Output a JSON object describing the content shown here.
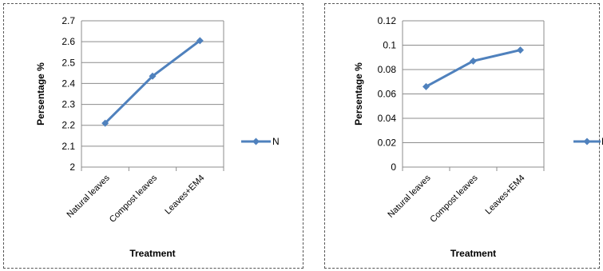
{
  "chart_data": [
    {
      "type": "line",
      "title": "",
      "xlabel": "Treatment",
      "ylabel": "Persentage %",
      "categories": [
        "Natural leaves",
        "Compost leaves",
        "Leaves+EM4"
      ],
      "series": [
        {
          "name": "N",
          "values": [
            2.21,
            2.435,
            2.605
          ]
        }
      ],
      "ylim": [
        2,
        2.7
      ],
      "yticks": [
        "2",
        "2.1",
        "2.2",
        "2.3",
        "2.4",
        "2.5",
        "2.6",
        "2.7"
      ],
      "grid": true,
      "legend": "right",
      "color": "#4f81bd"
    },
    {
      "type": "line",
      "title": "",
      "xlabel": "Treatment",
      "ylabel": "Persentage %",
      "categories": [
        "Natural leaves",
        "Compost leaves",
        "Leaves+EM4"
      ],
      "series": [
        {
          "name": "Mg",
          "values": [
            0.066,
            0.087,
            0.096
          ]
        }
      ],
      "ylim": [
        0,
        0.12
      ],
      "yticks": [
        "0",
        "0.02",
        "0.04",
        "0.06",
        "0.08",
        "0.1",
        "0.12"
      ],
      "grid": true,
      "legend": "right",
      "color": "#4f81bd"
    }
  ]
}
